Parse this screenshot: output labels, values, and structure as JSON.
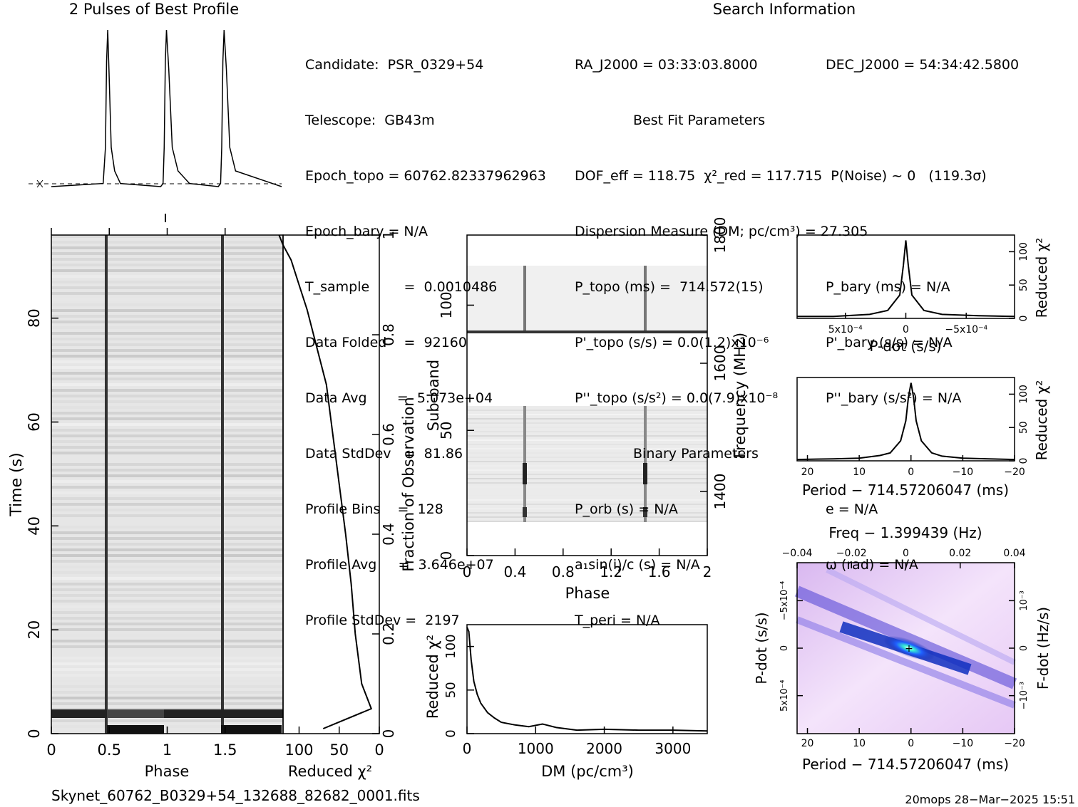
{
  "header": {
    "left_title": "2 Pulses of Best Profile",
    "right_title": "Search Information"
  },
  "info": {
    "candidate": "Candidate:  PSR_0329+54",
    "telescope": "Telescope:  GB43m",
    "epoch_topo": "Epoch_topo = 60762.82337962963",
    "epoch_bary": "Epoch_bary = N/A",
    "t_sample": "T_sample        =  0.0010486",
    "data_folded": "Data Folded    =  92160",
    "data_avg": "Data Avg       =  5.073e+04",
    "data_stddev": "Data StdDev   =  81.86",
    "profile_bins": "Profile Bins    =  128",
    "profile_avg": "Profile Avg     =  3.646e+07",
    "profile_stddev": "Profile StdDev =  2197",
    "ra": "RA_J2000 = 03:33:03.8000",
    "dec": "DEC_J2000 = 54:34:42.5800",
    "best_fit_title": "Best Fit Parameters",
    "dof": "DOF_eff = 118.75  χ²_red = 117.715  P(Noise) ~ 0   (119.3σ)",
    "dm": "Dispersion Measure (DM; pc/cm³) = 27.305",
    "p_topo": "P_topo (ms) =  714.572(15)",
    "pd_topo": "P'_topo (s/s) = 0.0(1.2)x10⁻⁶",
    "pdd_topo": "P''_topo (s/s²) = 0.0(7.9)x10⁻⁸",
    "p_bary": "P_bary (ms) = N/A",
    "pd_bary": "P'_bary (s/s) = N/A",
    "pdd_bary": "P''_bary (s/s²) = N/A",
    "binary_title": "Binary Parameters",
    "p_orb": "P_orb (s) = N/A",
    "a1sini": "a₁sin(i)/c (s) = N/A",
    "t_peri": "T_peri = N/A",
    "e": "e = N/A",
    "omega": "ω (rad) = N/A"
  },
  "footer": {
    "filename": "Skynet_60762_B0329+54_132688_82682_0001.fits",
    "stamp": "20mops 28−Mar−2025 15:51"
  },
  "chart_data": [
    {
      "type": "line",
      "title": "2 Pulses of Best Profile",
      "x": [
        0.0,
        0.45,
        0.47,
        0.48,
        0.49,
        0.5,
        0.52,
        0.55,
        0.6,
        0.95,
        0.97,
        0.98,
        0.99,
        1.0,
        1.02,
        1.05,
        1.1,
        1.2,
        1.45,
        1.47,
        1.48,
        1.49,
        1.5,
        1.52,
        1.55,
        1.6,
        2.0
      ],
      "values": [
        0.0,
        0.02,
        0.25,
        0.8,
        1.0,
        0.75,
        0.25,
        0.1,
        0.02,
        0.0,
        0.02,
        0.25,
        0.8,
        1.0,
        0.75,
        0.25,
        0.1,
        0.02,
        0.0,
        0.02,
        0.25,
        0.8,
        1.0,
        0.75,
        0.25,
        0.1,
        0.0
      ]
    },
    {
      "type": "heatmap",
      "xlabel": "Phase",
      "ylabel": "Time (s)",
      "xlim": [
        0,
        2
      ],
      "ylim": [
        0,
        96
      ],
      "x_ticks": [
        "0",
        "0.5",
        "1",
        "1.5"
      ],
      "y_ticks": [
        "0",
        "20",
        "40",
        "60",
        "80"
      ]
    },
    {
      "type": "line",
      "xlabel": "Reduced χ²",
      "ylabel": "Fraction of Observation",
      "xlim": [
        120,
        0
      ],
      "ylim": [
        0,
        1
      ],
      "x_ticks": [
        "100",
        "50",
        "0"
      ],
      "y_ticks": [
        "0",
        "0.2",
        "0.4",
        "0.6",
        "0.8",
        "1"
      ],
      "x": [
        70,
        10,
        22,
        30,
        35,
        42,
        50,
        58,
        66,
        74,
        82,
        90,
        100,
        110,
        120,
        125
      ],
      "y": [
        0.01,
        0.05,
        0.1,
        0.2,
        0.3,
        0.4,
        0.5,
        0.6,
        0.7,
        0.75,
        0.8,
        0.85,
        0.9,
        0.95,
        0.98,
        1.0
      ]
    },
    {
      "type": "heatmap",
      "xlabel": "Phase",
      "ylabel": "Sub-band",
      "y2label": "Frequency (MHz)",
      "xlim": [
        0,
        2
      ],
      "ylim": [
        0,
        128
      ],
      "y2lim": [
        1300,
        1800
      ],
      "x_ticks": [
        "0",
        "0.4",
        "0.8",
        "1.2",
        "1.6",
        "2"
      ],
      "y_ticks": [
        "0",
        "50",
        "100"
      ],
      "y2_ticks": [
        "1400",
        "1600",
        "1800"
      ]
    },
    {
      "type": "line",
      "xlabel": "DM (pc/cm³)",
      "ylabel": "Reduced χ²",
      "xlim": [
        0,
        3500
      ],
      "ylim": [
        0,
        125
      ],
      "x_ticks": [
        "0",
        "1000",
        "2000",
        "3000"
      ],
      "y_ticks": [
        "0",
        "50",
        "100"
      ],
      "x": [
        0,
        27,
        60,
        100,
        150,
        200,
        300,
        400,
        500,
        700,
        900,
        1100,
        1300,
        1600,
        2000,
        2500,
        3000,
        3500
      ],
      "values": [
        122,
        117,
        85,
        60,
        45,
        35,
        24,
        18,
        13,
        10,
        8,
        11,
        7,
        4,
        5,
        4,
        4,
        3
      ]
    },
    {
      "type": "line",
      "xlabel": "P-dot (s/s)",
      "ylabel": "Reduced χ²",
      "xlim": [
        0.0009,
        -0.0009
      ],
      "ylim": [
        0,
        125
      ],
      "x_ticks": [
        "5x10⁻⁴",
        "0",
        "−5x10⁻⁴"
      ],
      "y_ticks": [
        "0",
        "50",
        "100"
      ],
      "x": [
        0.0009,
        0.0006,
        0.0003,
        0.00015,
        5e-05,
        2e-05,
        0,
        -2e-05,
        -5e-05,
        -0.00015,
        -0.0003,
        -0.0006,
        -0.0009
      ],
      "values": [
        3,
        3,
        6,
        12,
        35,
        80,
        117,
        80,
        35,
        12,
        6,
        4,
        3
      ]
    },
    {
      "type": "line",
      "xlabel": "Period − 714.57206047 (ms)",
      "ylabel": "Reduced χ²",
      "xlim": [
        22,
        -20
      ],
      "ylim": [
        0,
        125
      ],
      "x_ticks": [
        "20",
        "10",
        "0",
        "−10",
        "−20"
      ],
      "y_ticks": [
        "0",
        "50",
        "100"
      ],
      "x": [
        22,
        15,
        10,
        6,
        4,
        2,
        1,
        0.5,
        0,
        -0.5,
        -1,
        -2,
        -4,
        -6,
        -10,
        -15,
        -20
      ],
      "values": [
        2,
        3,
        4,
        8,
        12,
        30,
        60,
        95,
        117,
        95,
        60,
        30,
        12,
        7,
        4,
        3,
        2
      ]
    },
    {
      "type": "heatmap",
      "xlabel": "Period − 714.57206047 (ms)",
      "ylabel": "P-dot (s/s)",
      "x2label": "Freq − 1.399439 (Hz)",
      "y2label": "F-dot (Hz/s)",
      "xlim": [
        22,
        -20
      ],
      "ylim": [
        0.0009,
        -0.0009
      ],
      "x_ticks": [
        "20",
        "10",
        "0",
        "−10",
        "−20"
      ],
      "x2_ticks": [
        "−0.04",
        "−0.02",
        "0",
        "0.02",
        "0.04"
      ],
      "y_ticks": [
        "−5x10⁻⁴",
        "0",
        "5x10⁻⁴"
      ],
      "y2_ticks": [
        "10⁻³",
        "0",
        "−10⁻³"
      ]
    }
  ]
}
